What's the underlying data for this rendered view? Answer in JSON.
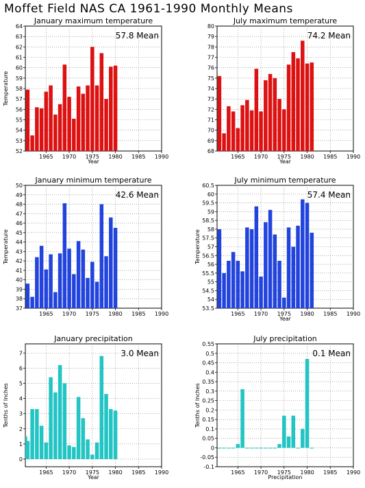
{
  "title": "Moffet Field NAS CA  1961-1990 Monthly Means",
  "chart_data": [
    {
      "type": "bar",
      "title": "January maximum temperature",
      "xlabel": "Year",
      "ylabel": "Temperature",
      "mean_label": "57.8 Mean",
      "color": "#dd1111",
      "xlim": [
        1960.5,
        1990
      ],
      "ylim": [
        52,
        64
      ],
      "yticks": [
        52,
        53,
        54,
        55,
        56,
        57,
        58,
        59,
        60,
        61,
        62,
        63,
        64
      ],
      "xticks": [
        1965,
        1970,
        1975,
        1980,
        1985,
        1990
      ],
      "x": [
        1961,
        1962,
        1963,
        1964,
        1965,
        1966,
        1967,
        1968,
        1969,
        1970,
        1971,
        1972,
        1973,
        1974,
        1975,
        1976,
        1977,
        1978,
        1979,
        1980,
        1981
      ],
      "values": [
        57.9,
        53.5,
        56.2,
        56.1,
        57.7,
        58.3,
        55.5,
        56.5,
        60.3,
        57.2,
        55.1,
        58.2,
        57.5,
        58.3,
        62.0,
        58.3,
        61.4,
        57.0,
        60.1,
        60.2,
        null
      ]
    },
    {
      "type": "bar",
      "title": "July maximum temperature",
      "xlabel": "Year",
      "ylabel": "",
      "mean_label": "74.2 Mean",
      "color": "#dd1111",
      "xlim": [
        1960.5,
        1990
      ],
      "ylim": [
        68,
        80
      ],
      "yticks": [
        68,
        69,
        70,
        71,
        72,
        73,
        74,
        75,
        76,
        77,
        78,
        79,
        80
      ],
      "xticks": [
        1965,
        1970,
        1975,
        1980,
        1985,
        1990
      ],
      "x": [
        1961,
        1962,
        1963,
        1964,
        1965,
        1966,
        1967,
        1968,
        1969,
        1970,
        1971,
        1972,
        1973,
        1974,
        1975,
        1976,
        1977,
        1978,
        1979,
        1980,
        1981
      ],
      "values": [
        75.2,
        69.7,
        72.3,
        71.8,
        70.2,
        72.4,
        72.9,
        71.9,
        75.9,
        71.8,
        74.8,
        75.4,
        75.0,
        73.0,
        72.0,
        76.3,
        77.5,
        76.9,
        78.6,
        76.4,
        76.5
      ]
    },
    {
      "type": "bar",
      "title": "January minimum temperature",
      "xlabel": "",
      "ylabel": "Temperature",
      "mean_label": "42.6 Mean",
      "color": "#2244dd",
      "xlim": [
        1960.5,
        1990
      ],
      "ylim": [
        37,
        50
      ],
      "yticks": [
        37,
        38,
        39,
        40,
        41,
        42,
        43,
        44,
        45,
        46,
        47,
        48,
        49,
        50
      ],
      "xticks": [
        1965,
        1970,
        1975,
        1980,
        1985,
        1990
      ],
      "x": [
        1961,
        1962,
        1963,
        1964,
        1965,
        1966,
        1967,
        1968,
        1969,
        1970,
        1971,
        1972,
        1973,
        1974,
        1975,
        1976,
        1977,
        1978,
        1979,
        1980,
        1981
      ],
      "values": [
        39.6,
        38.2,
        42.4,
        43.6,
        41.1,
        42.7,
        38.7,
        42.8,
        48.1,
        43.3,
        40.6,
        44.1,
        43.2,
        40.2,
        41.9,
        39.8,
        48.0,
        42.5,
        46.6,
        45.5,
        null
      ]
    },
    {
      "type": "bar",
      "title": "July minimum temperature",
      "xlabel": "Year",
      "ylabel": "Temperature",
      "mean_label": "57.4 Mean",
      "color": "#2244dd",
      "xlim": [
        1960.5,
        1990
      ],
      "ylim": [
        53.5,
        60.5
      ],
      "yticks": [
        53.5,
        54,
        54.5,
        55,
        55.5,
        56,
        56.5,
        57,
        57.5,
        58,
        58.5,
        59,
        59.5,
        60,
        60.5
      ],
      "xticks": [
        1965,
        1970,
        1975,
        1980,
        1985,
        1990
      ],
      "x": [
        1961,
        1962,
        1963,
        1964,
        1965,
        1966,
        1967,
        1968,
        1969,
        1970,
        1971,
        1972,
        1973,
        1974,
        1975,
        1976,
        1977,
        1978,
        1979,
        1980,
        1981
      ],
      "values": [
        58.0,
        55.5,
        56.2,
        56.7,
        56.2,
        55.6,
        58.1,
        58.0,
        59.3,
        55.3,
        58.4,
        59.1,
        57.7,
        56.2,
        54.1,
        58.1,
        57.0,
        58.2,
        59.7,
        59.5,
        57.8
      ]
    },
    {
      "type": "bar",
      "title": "January precipitation",
      "xlabel": "Year",
      "ylabel": "Tenths of Inches",
      "mean_label": "3.0 Mean",
      "color": "#22c4c4",
      "xlim": [
        1960.5,
        1990
      ],
      "ylim": [
        -0.5,
        7.6
      ],
      "yticks": [
        0,
        1,
        2,
        3,
        4,
        5,
        6,
        7
      ],
      "xticks": [
        1965,
        1970,
        1975,
        1980,
        1985,
        1990
      ],
      "x": [
        1960.5,
        1961,
        1962,
        1963,
        1964,
        1965,
        1966,
        1967,
        1968,
        1969,
        1970,
        1971,
        1972,
        1973,
        1974,
        1975,
        1976,
        1977,
        1978,
        1979,
        1980,
        1981
      ],
      "values": [
        1.5,
        1.2,
        3.3,
        3.3,
        2.2,
        1.1,
        5.4,
        4.4,
        6.2,
        5.0,
        0.9,
        0.8,
        4.1,
        2.7,
        1.3,
        0.3,
        1.1,
        6.8,
        4.3,
        3.3,
        3.2,
        null
      ]
    },
    {
      "type": "bar",
      "title": "July precipitation",
      "xlabel": "Precipitation",
      "ylabel": "Tenths of Inches",
      "mean_label": "0.1 Mean",
      "color": "#22c4c4",
      "xlim": [
        1960.5,
        1990
      ],
      "ylim": [
        -0.1,
        0.55
      ],
      "yticks": [
        -0.1,
        -0.05,
        0,
        0.05,
        0.1,
        0.15,
        0.2,
        0.25,
        0.3,
        0.35,
        0.4,
        0.45,
        0.5,
        0.55
      ],
      "xticks": [
        1965,
        1970,
        1975,
        1980,
        1985,
        1990
      ],
      "x": [
        1961,
        1962,
        1963,
        1964,
        1965,
        1966,
        1967,
        1968,
        1969,
        1970,
        1971,
        1972,
        1973,
        1974,
        1975,
        1976,
        1977,
        1978,
        1979,
        1980,
        1981
      ],
      "values": [
        0,
        0,
        0,
        0,
        0.02,
        0.31,
        0,
        0,
        0,
        0,
        0,
        0,
        0,
        0.02,
        0.17,
        0.06,
        0.17,
        0,
        0.1,
        0.47,
        0
      ]
    }
  ]
}
